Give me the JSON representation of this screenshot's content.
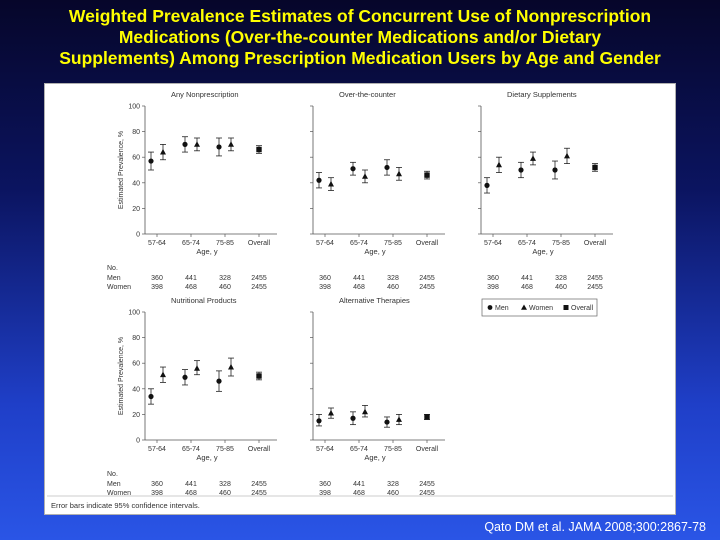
{
  "slide": {
    "title_lines": [
      "Weighted Prevalence Estimates of Concurrent Use of Nonprescription",
      "Medications (Over-the-counter Medications and/or Dietary",
      "Supplements) Among Prescription Medication Users by Age and Gender"
    ],
    "citation": "Qato DM et al. JAMA 2008;300:2867-78",
    "footnote": "Error bars indicate 95% confidence intervals."
  },
  "chart_data": {
    "type": "scatter",
    "ylabel": "Estimated Prevalence, %",
    "xlabel": "Age, y",
    "ylim": [
      0,
      100
    ],
    "yticks": [
      0,
      20,
      40,
      60,
      80,
      100
    ],
    "categories": [
      "57-64",
      "65-74",
      "75-85",
      "Overall"
    ],
    "legend": {
      "placement": "right",
      "entries": [
        {
          "name": "Men",
          "marker": "circle"
        },
        {
          "name": "Women",
          "marker": "triangle"
        },
        {
          "name": "Overall",
          "marker": "square"
        }
      ]
    },
    "sample_sizes": {
      "header": "No.",
      "rows": [
        {
          "label": "Men",
          "values": [
            "360",
            "441",
            "328",
            "2455"
          ]
        },
        {
          "label": "Women",
          "values": [
            "398",
            "468",
            "460",
            "2455"
          ]
        }
      ]
    },
    "panels": [
      {
        "title": "Any Nonprescription",
        "men": [
          {
            "y": 57,
            "lo": 50,
            "hi": 64
          },
          {
            "y": 70,
            "lo": 64,
            "hi": 76
          },
          {
            "y": 68,
            "lo": 61,
            "hi": 75
          }
        ],
        "women": [
          {
            "y": 64,
            "lo": 58,
            "hi": 70
          },
          {
            "y": 70,
            "lo": 65,
            "hi": 75
          },
          {
            "y": 70,
            "lo": 65,
            "hi": 75
          }
        ],
        "overall": {
          "y": 66,
          "lo": 63,
          "hi": 69
        }
      },
      {
        "title": "Over-the-counter",
        "men": [
          {
            "y": 42,
            "lo": 36,
            "hi": 48
          },
          {
            "y": 51,
            "lo": 46,
            "hi": 56
          },
          {
            "y": 52,
            "lo": 46,
            "hi": 58
          }
        ],
        "women": [
          {
            "y": 39,
            "lo": 34,
            "hi": 44
          },
          {
            "y": 45,
            "lo": 40,
            "hi": 50
          },
          {
            "y": 47,
            "lo": 42,
            "hi": 52
          }
        ],
        "overall": {
          "y": 46,
          "lo": 43,
          "hi": 49
        }
      },
      {
        "title": "Dietary Supplements",
        "men": [
          {
            "y": 38,
            "lo": 32,
            "hi": 44
          },
          {
            "y": 50,
            "lo": 44,
            "hi": 56
          },
          {
            "y": 50,
            "lo": 43,
            "hi": 57
          }
        ],
        "women": [
          {
            "y": 54,
            "lo": 48,
            "hi": 60
          },
          {
            "y": 59,
            "lo": 54,
            "hi": 64
          },
          {
            "y": 61,
            "lo": 55,
            "hi": 67
          }
        ],
        "overall": {
          "y": 52,
          "lo": 49,
          "hi": 55
        }
      },
      {
        "title": "Nutritional Products",
        "men": [
          {
            "y": 34,
            "lo": 28,
            "hi": 40
          },
          {
            "y": 49,
            "lo": 43,
            "hi": 55
          },
          {
            "y": 46,
            "lo": 38,
            "hi": 54
          }
        ],
        "women": [
          {
            "y": 51,
            "lo": 45,
            "hi": 57
          },
          {
            "y": 56,
            "lo": 51,
            "hi": 62
          },
          {
            "y": 57,
            "lo": 50,
            "hi": 64
          }
        ],
        "overall": {
          "y": 50,
          "lo": 47,
          "hi": 53
        }
      },
      {
        "title": "Alternative Therapies",
        "men": [
          {
            "y": 15,
            "lo": 11,
            "hi": 20
          },
          {
            "y": 17,
            "lo": 12,
            "hi": 22
          },
          {
            "y": 14,
            "lo": 10,
            "hi": 18
          }
        ],
        "women": [
          {
            "y": 21,
            "lo": 17,
            "hi": 25
          },
          {
            "y": 22,
            "lo": 18,
            "hi": 27
          },
          {
            "y": 16,
            "lo": 12,
            "hi": 20
          }
        ],
        "overall": {
          "y": 18,
          "lo": 16,
          "hi": 20
        }
      }
    ]
  }
}
